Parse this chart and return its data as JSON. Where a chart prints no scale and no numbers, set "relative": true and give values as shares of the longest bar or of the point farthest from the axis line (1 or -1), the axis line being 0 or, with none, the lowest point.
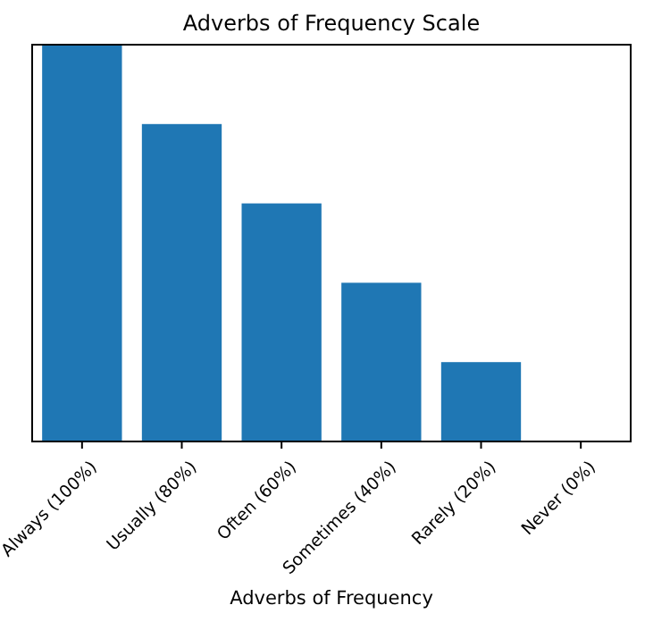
{
  "chart_data": {
    "type": "bar",
    "title": "Adverbs of Frequency Scale",
    "xlabel": "Adverbs of Frequency",
    "categories": [
      "Always (100%)",
      "Usually (80%)",
      "Often (60%)",
      "Sometimes (40%)",
      "Rarely (20%)",
      "Never (0%)"
    ],
    "values": [
      1,
      0.8,
      0.6,
      0.4,
      0.2,
      0
    ],
    "color": "#1f77b4",
    "relative": true
  }
}
